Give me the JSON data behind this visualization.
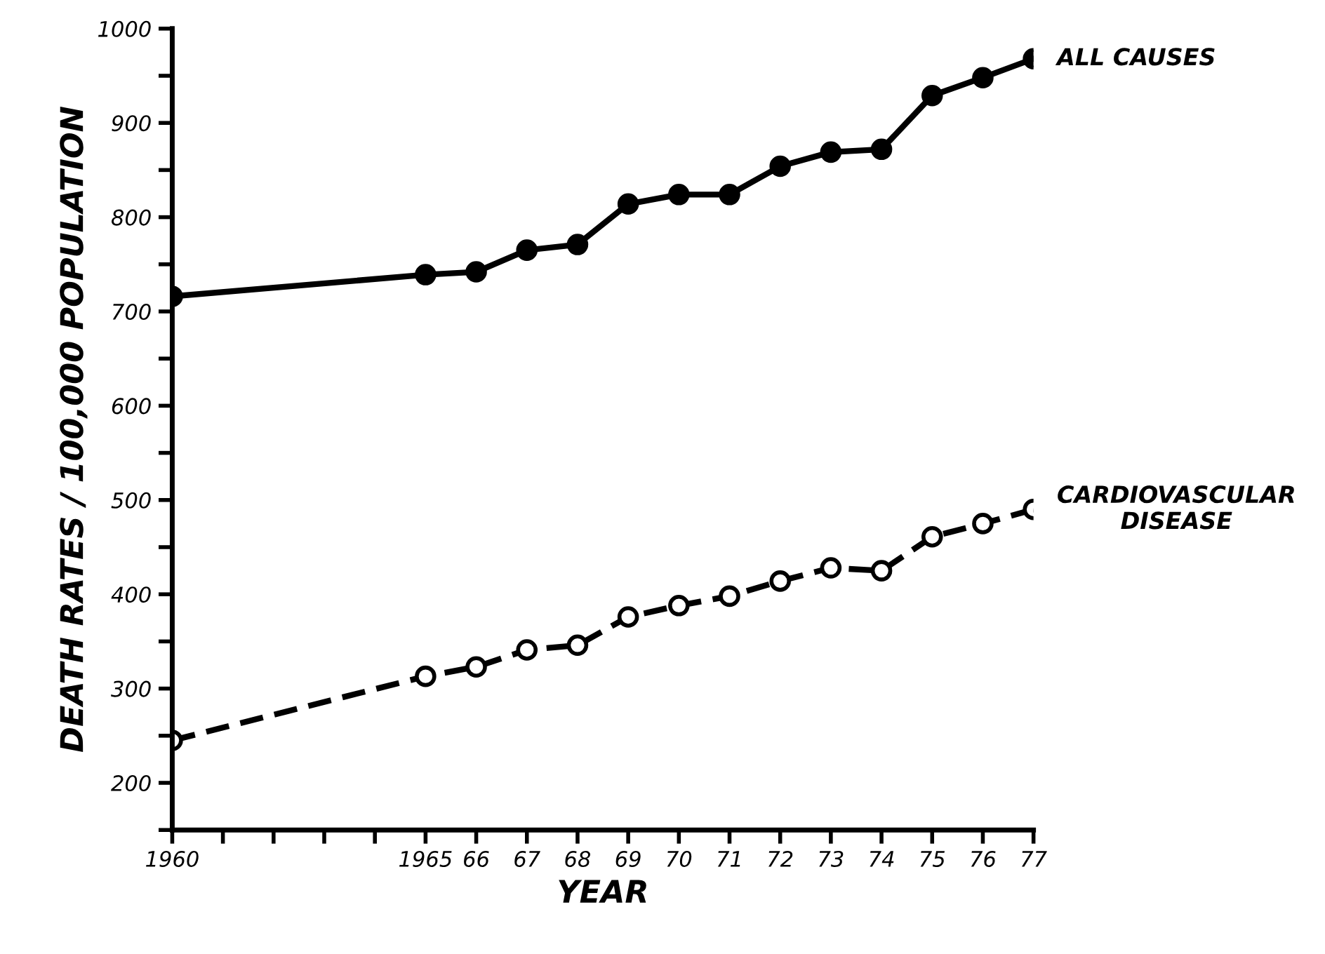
{
  "chart_data": {
    "type": "line",
    "xlabel": "YEAR",
    "ylabel": "DEATH RATES / 100,000 POPULATION",
    "x": [
      1960,
      1965,
      1966,
      1967,
      1968,
      1969,
      1970,
      1971,
      1972,
      1973,
      1974,
      1975,
      1976,
      1977
    ],
    "series": [
      {
        "name": "ALL CAUSES",
        "color": "#000000",
        "marker": "circle",
        "line_style": "solid",
        "values": [
          716,
          739,
          742,
          765,
          771,
          814,
          824,
          824,
          854,
          869,
          872,
          929,
          948,
          968
        ]
      },
      {
        "name": "CARDIOVASCULAR\nDISEASE",
        "color": "#000000",
        "marker": "circle",
        "line_style": "dashed",
        "values": [
          245,
          313,
          323,
          341,
          346,
          376,
          388,
          398,
          414,
          428,
          425,
          461,
          475,
          490
        ]
      }
    ],
    "xlim": [
      1960,
      1977
    ],
    "xticks": [
      1960,
      {
        "value": 1961,
        "label": null
      },
      {
        "value": 1962,
        "label": null
      },
      {
        "value": 1963,
        "label": null
      },
      {
        "value": 1964,
        "label": null
      },
      1965,
      {
        "value": 1966,
        "label": "66"
      },
      {
        "value": 1967,
        "label": "67"
      },
      {
        "value": 1968,
        "label": "68"
      },
      {
        "value": 1969,
        "label": "69"
      },
      {
        "value": 1970,
        "label": "70"
      },
      {
        "value": 1971,
        "label": "71"
      },
      {
        "value": 1972,
        "label": "72"
      },
      {
        "value": 1973,
        "label": "73"
      },
      {
        "value": 1974,
        "label": "74"
      },
      {
        "value": 1975,
        "label": "75"
      },
      {
        "value": 1976,
        "label": "76"
      },
      {
        "value": 1977,
        "label": "77"
      }
    ],
    "ylim": [
      150,
      1000
    ],
    "yticks": [
      {
        "value": 150,
        "label": null
      },
      200,
      {
        "value": 250,
        "label": null
      },
      300,
      {
        "value": 350,
        "label": null
      },
      400,
      {
        "value": 450,
        "label": null
      },
      500,
      {
        "value": 550,
        "label": null
      },
      600,
      {
        "value": 650,
        "label": null
      },
      700,
      {
        "value": 750,
        "label": null
      },
      800,
      {
        "value": 850,
        "label": null
      },
      900,
      {
        "value": 950,
        "label": null
      },
      1000
    ],
    "grid": false,
    "legend": false
  }
}
